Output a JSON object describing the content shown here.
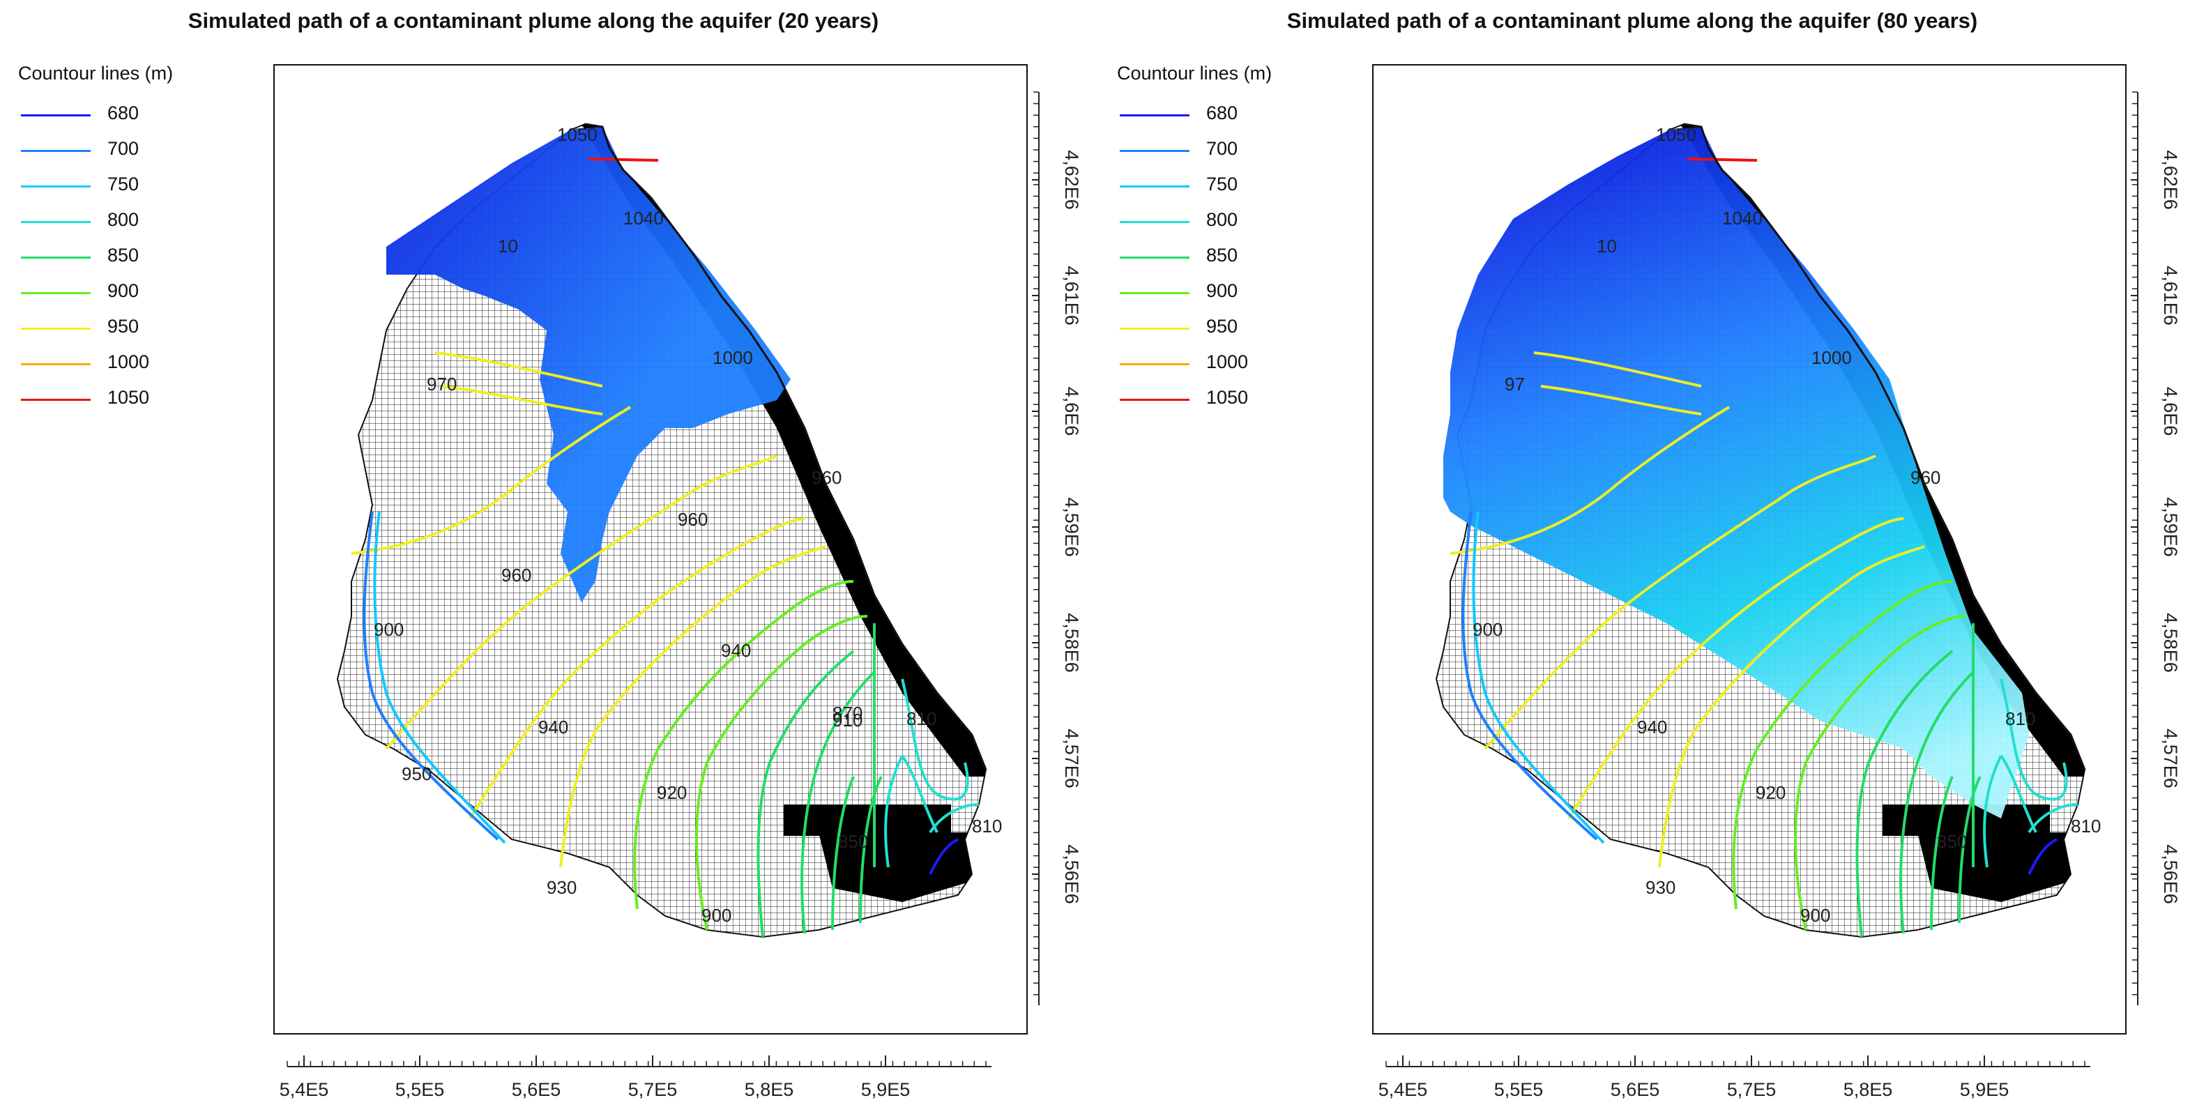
{
  "panels": [
    {
      "title": "Simulated path of a contaminant plume along the aquifer (20 years)",
      "legend_title": "Countour lines (m)"
    },
    {
      "title": "Simulated path of a contaminant plume along the aquifer (80 years)",
      "legend_title": "Countour lines (m)"
    }
  ],
  "legend": [
    {
      "label": "680",
      "color": "#1a1aff"
    },
    {
      "label": "700",
      "color": "#1f7fff"
    },
    {
      "label": "750",
      "color": "#12c8ff"
    },
    {
      "label": "800",
      "color": "#20e0d0"
    },
    {
      "label": "850",
      "color": "#22dd66"
    },
    {
      "label": "900",
      "color": "#66ee22"
    },
    {
      "label": "950",
      "color": "#eeee22"
    },
    {
      "label": "1000",
      "color": "#ffaa00"
    },
    {
      "label": "1050",
      "color": "#ee1111"
    }
  ],
  "x_axis_ticks": [
    "5,4E5",
    "5,5E5",
    "5,6E5",
    "5,7E5",
    "5,8E5",
    "5,9E5"
  ],
  "y_axis_ticks": [
    "4,62E6",
    "4,61E6",
    "4,6E6",
    "4,59E6",
    "4,58E6",
    "4,57E6",
    "4,56E6"
  ],
  "contour_labels_left": [
    "1050",
    "1040",
    "10",
    "1000",
    "970",
    "960",
    "960",
    "960",
    "900",
    "940",
    "940",
    "910",
    "870",
    "810",
    "950",
    "920",
    "850",
    "930",
    "900",
    "810"
  ],
  "contour_labels_right": [
    "1050",
    "1040",
    "10",
    "1000",
    "97",
    "960",
    "900",
    "940",
    "810",
    "920",
    "850",
    "930",
    "900",
    "810"
  ],
  "colors": {
    "plume_dark": "#0b1fe0",
    "plume_mid": "#1e7fff",
    "plume_light": "#19d2f2",
    "grid": "#111111"
  }
}
